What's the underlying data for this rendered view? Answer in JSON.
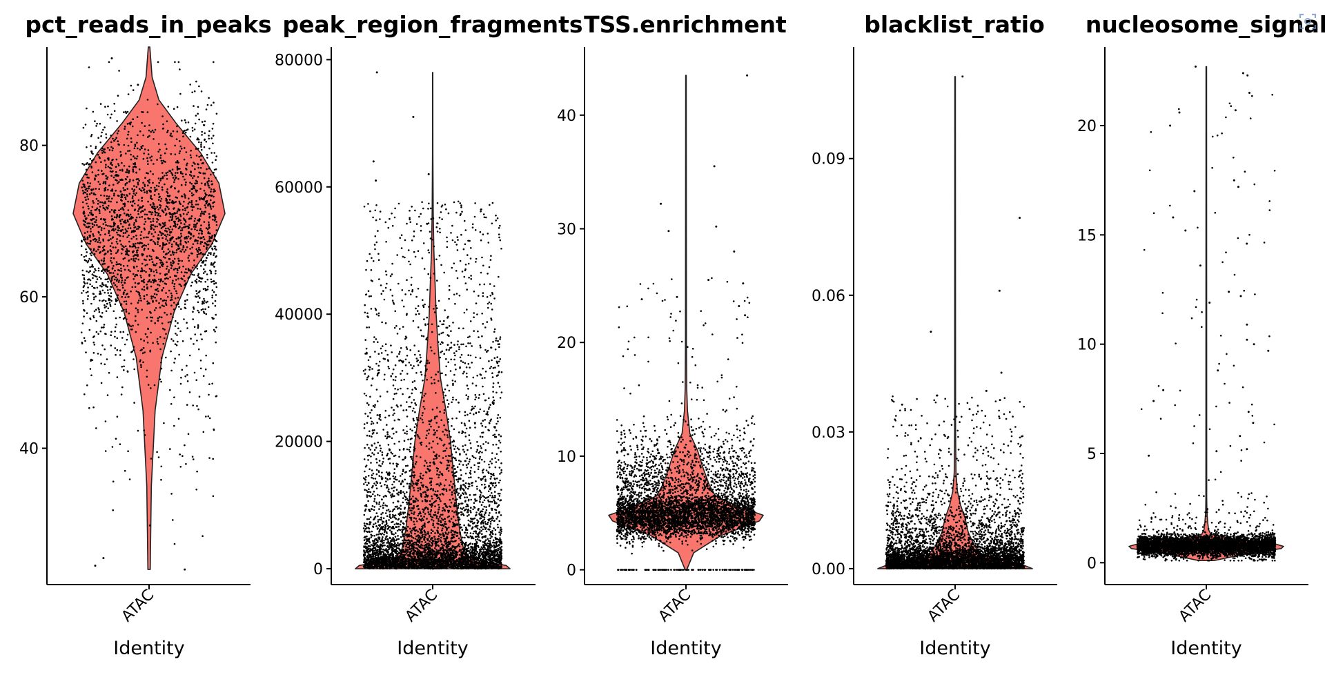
{
  "chart_data": [
    {
      "type": "violin",
      "title": "pct_reads_in_peaks",
      "xlabel": "Identity",
      "ylabel": "",
      "categories": [
        "ATAC"
      ],
      "ylim": [
        22,
        93
      ],
      "yticks": [
        40,
        60,
        80
      ],
      "fill_color": "#f8766d",
      "n_points": 2400,
      "points_summary": {
        "min": 24,
        "max": 93,
        "median": 70,
        "q1": 64,
        "q3": 75
      },
      "density_profile": [
        [
          24,
          0.015
        ],
        [
          35,
          0.03
        ],
        [
          45,
          0.08
        ],
        [
          52,
          0.17
        ],
        [
          58,
          0.33
        ],
        [
          63,
          0.55
        ],
        [
          67,
          0.83
        ],
        [
          71,
          1.0
        ],
        [
          75,
          0.92
        ],
        [
          79,
          0.68
        ],
        [
          83,
          0.35
        ],
        [
          86,
          0.13
        ],
        [
          89,
          0.04
        ],
        [
          93,
          0.01
        ]
      ]
    },
    {
      "type": "violin",
      "title": "peak_region_fragments",
      "xlabel": "Identity",
      "ylabel": "",
      "categories": [
        "ATAC"
      ],
      "ylim": [
        -2500,
        82000
      ],
      "yticks": [
        0,
        20000,
        40000,
        60000,
        80000
      ],
      "fill_color": "#f8766d",
      "n_points": 5200,
      "points_summary": {
        "min": 0,
        "max": 78000,
        "median": 7000,
        "q1": 1200,
        "q3": 22000
      },
      "density_profile": [
        [
          0,
          1.0
        ],
        [
          500,
          0.95
        ],
        [
          1500,
          0.5
        ],
        [
          3000,
          0.4
        ],
        [
          6000,
          0.35
        ],
        [
          10000,
          0.31
        ],
        [
          15000,
          0.27
        ],
        [
          20000,
          0.23
        ],
        [
          25000,
          0.17
        ],
        [
          30000,
          0.1
        ],
        [
          35000,
          0.07
        ],
        [
          40000,
          0.045
        ],
        [
          45000,
          0.03
        ],
        [
          50000,
          0.015
        ],
        [
          56000,
          0.007
        ],
        [
          65000,
          0.003
        ],
        [
          78000,
          0.002
        ]
      ]
    },
    {
      "type": "violin",
      "title": "TSS.enrichment",
      "xlabel": "Identity",
      "ylabel": "",
      "categories": [
        "ATAC"
      ],
      "ylim": [
        -1.3,
        46
      ],
      "yticks": [
        0,
        10,
        20,
        30,
        40
      ],
      "fill_color": "#f8766d",
      "n_points": 4800,
      "points_summary": {
        "min": 0,
        "max": 43.5,
        "median": 4.8,
        "q1": 3.8,
        "q3": 5.9
      },
      "density_profile": [
        [
          0,
          0.01
        ],
        [
          1.5,
          0.1
        ],
        [
          3,
          0.45
        ],
        [
          4.3,
          0.95
        ],
        [
          4.8,
          1.0
        ],
        [
          5.5,
          0.7
        ],
        [
          6.5,
          0.38
        ],
        [
          7.5,
          0.3
        ],
        [
          9,
          0.22
        ],
        [
          10.5,
          0.15
        ],
        [
          12,
          0.05
        ],
        [
          14,
          0.02
        ],
        [
          16,
          0.01
        ],
        [
          20,
          0.006
        ],
        [
          43.5,
          0.004
        ]
      ]
    },
    {
      "type": "violin",
      "title": "blacklist_ratio",
      "xlabel": "Identity",
      "ylabel": "",
      "categories": [
        "ATAC"
      ],
      "ylim": [
        -0.0035,
        0.1145
      ],
      "yticks": [
        "0.00",
        "0.03",
        "0.06",
        "0.09"
      ],
      "fill_color": "#f8766d",
      "n_points": 5000,
      "points_summary": {
        "min": 0.0,
        "max": 0.108,
        "median": 0.002,
        "q1": 0.0005,
        "q3": 0.005
      },
      "density_profile": [
        [
          0,
          1.0
        ],
        [
          0.001,
          0.85
        ],
        [
          0.003,
          0.35
        ],
        [
          0.005,
          0.25
        ],
        [
          0.008,
          0.17
        ],
        [
          0.011,
          0.13
        ],
        [
          0.014,
          0.07
        ],
        [
          0.017,
          0.03
        ],
        [
          0.021,
          0.012
        ],
        [
          0.03,
          0.006
        ],
        [
          0.108,
          0.004
        ]
      ]
    },
    {
      "type": "violin",
      "title": "nucleosome_signal",
      "xlabel": "Identity",
      "ylabel": "",
      "categories": [
        "ATAC"
      ],
      "ylim": [
        -1,
        23.6
      ],
      "yticks": [
        0,
        5,
        10,
        15,
        20
      ],
      "fill_color": "#f8766d",
      "n_points": 4600,
      "points_summary": {
        "min": 0.1,
        "max": 22.7,
        "median": 0.75,
        "q1": 0.5,
        "q3": 1.0
      },
      "density_profile": [
        [
          0.1,
          0.1
        ],
        [
          0.4,
          0.5
        ],
        [
          0.65,
          0.97
        ],
        [
          0.75,
          1.0
        ],
        [
          0.9,
          0.85
        ],
        [
          1.1,
          0.35
        ],
        [
          1.3,
          0.06
        ],
        [
          1.5,
          0.03
        ],
        [
          1.8,
          0.02
        ],
        [
          2.3,
          0.008
        ],
        [
          3,
          0.005
        ],
        [
          22.7,
          0.004
        ]
      ]
    }
  ],
  "icons": {
    "screenshot": "screenshot-icon"
  }
}
